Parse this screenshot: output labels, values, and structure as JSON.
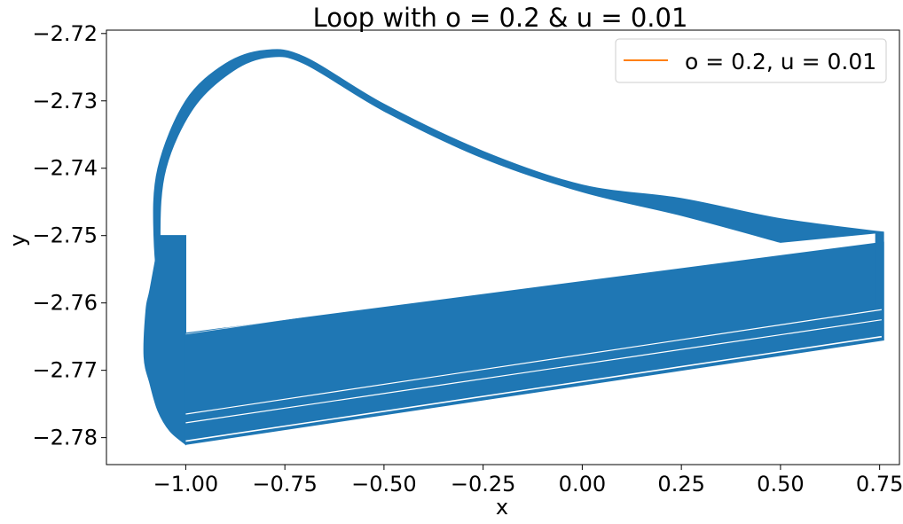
{
  "chart_data": {
    "type": "line",
    "title": "Loop with o = 0.2 & u = 0.01",
    "xlabel": "x",
    "ylabel": "y",
    "xlim": [
      -1.2,
      0.8
    ],
    "ylim": [
      -2.784,
      -2.7195
    ],
    "x_ticks": [
      -1.0,
      -0.75,
      -0.5,
      -0.25,
      0.0,
      0.25,
      0.5,
      0.75
    ],
    "x_tick_labels": [
      "−1.00",
      "−0.75",
      "−0.50",
      "−0.25",
      "0.00",
      "0.25",
      "0.50",
      "0.75"
    ],
    "y_ticks": [
      -2.72,
      -2.73,
      -2.74,
      -2.75,
      -2.76,
      -2.77,
      -2.78
    ],
    "y_tick_labels": [
      "−2.72",
      "−2.73",
      "−2.74",
      "−2.75",
      "−2.76",
      "−2.77",
      "−2.78"
    ],
    "grid": false,
    "legend_position": "top-right",
    "series": [
      {
        "name": "o = 0.2, u = 0.01",
        "legend_color": "#ff7f0e",
        "color": "#1f77b4",
        "loop_outer_top": {
          "x": [
            -1.0,
            -1.06,
            -1.08,
            -1.07,
            -1.0,
            -0.9,
            -0.8,
            -0.7,
            -0.5,
            -0.25,
            0.0,
            0.25,
            0.5,
            0.76
          ],
          "y": [
            -2.7655,
            -2.7595,
            -2.75,
            -2.74,
            -2.73,
            -2.7245,
            -2.7225,
            -2.7235,
            -2.7305,
            -2.7375,
            -2.7425,
            -2.7445,
            -2.7475,
            -2.7495
          ]
        },
        "loop_inner_top": {
          "x": [
            -1.0,
            -1.05,
            -1.065,
            -1.05,
            -0.98,
            -0.88,
            -0.79,
            -0.7,
            -0.5,
            -0.25,
            0.0,
            0.25,
            0.5
          ],
          "y": [
            -2.7645,
            -2.76,
            -2.75,
            -2.74,
            -2.731,
            -2.7255,
            -2.7235,
            -2.7245,
            -2.7315,
            -2.7385,
            -2.7435,
            -2.747,
            -2.751
          ]
        },
        "loop_outer_bottom": {
          "x": [
            -1.0,
            -1.04,
            -1.07,
            -1.09,
            -1.105,
            -1.1
          ],
          "y": [
            -2.781,
            -2.779,
            -2.776,
            -2.772,
            -2.768,
            -2.761
          ]
        },
        "lower_band": {
          "x": [
            -1.0,
            0.76
          ],
          "y_top_start": -2.7645,
          "y_top_end": -2.751,
          "y_bottom_start": -2.781,
          "y_bottom_end": -2.7655
        },
        "band_gaps": [
          {
            "x": [
              -1.0,
              0.755
            ],
            "y": [
              -2.7765,
              -2.761
            ]
          },
          {
            "x": [
              -1.0,
              0.755
            ],
            "y": [
              -2.7778,
              -2.7625
            ]
          },
          {
            "x": [
              -1.0,
              0.755
            ],
            "y": [
              -2.7805,
              -2.765
            ]
          }
        ]
      }
    ]
  }
}
